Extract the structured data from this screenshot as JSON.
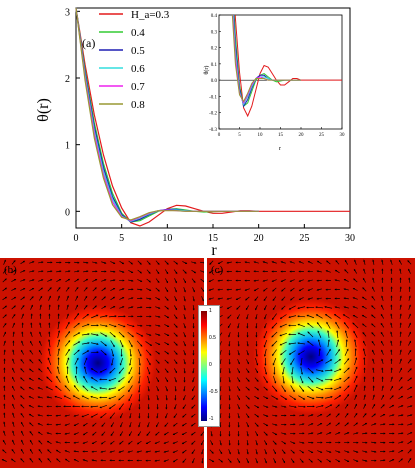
{
  "chart_data": [
    {
      "type": "line",
      "panel_label": "(a)",
      "xlabel": "r",
      "ylabel": "θ(r)",
      "xlim": [
        0,
        30
      ],
      "ylim": [
        -0.25,
        3.05
      ],
      "xticks": [
        "0",
        "5",
        "10",
        "15",
        "20",
        "25",
        "30"
      ],
      "yticks": [
        "0",
        "1",
        "2",
        "3"
      ],
      "legend_position": "top-left",
      "series": [
        {
          "name": "H_a=0.3",
          "color": "#e31a1c",
          "x": [
            0,
            1,
            2,
            3,
            4,
            5,
            6,
            7,
            8,
            9,
            10,
            11,
            12,
            13,
            14,
            15,
            16,
            17,
            18,
            19,
            20,
            22,
            25,
            28,
            30
          ],
          "y": [
            3.05,
            2.2,
            1.45,
            0.85,
            0.38,
            0.05,
            -0.17,
            -0.22,
            -0.16,
            -0.06,
            0.04,
            0.09,
            0.08,
            0.04,
            0.0,
            -0.03,
            -0.03,
            -0.01,
            0.01,
            0.01,
            0.0,
            0.0,
            0.0,
            0.0,
            0.0
          ]
        },
        {
          "name": "0.4",
          "color": "#33cc33",
          "x": [
            0,
            1,
            2,
            3,
            4,
            5,
            6,
            7,
            8,
            9,
            10,
            11,
            12,
            13,
            14,
            16,
            18,
            20
          ],
          "y": [
            3.05,
            2.12,
            1.33,
            0.72,
            0.27,
            -0.03,
            -0.16,
            -0.14,
            -0.07,
            0.0,
            0.03,
            0.04,
            0.02,
            0.0,
            -0.01,
            0.0,
            0.0,
            0.0
          ]
        },
        {
          "name": "0.5",
          "color": "#1f1fb4",
          "x": [
            0,
            1,
            2,
            3,
            4,
            5,
            6,
            7,
            8,
            9,
            10,
            11,
            12,
            13,
            14,
            16,
            18,
            20
          ],
          "y": [
            3.05,
            2.08,
            1.27,
            0.66,
            0.22,
            -0.05,
            -0.16,
            -0.12,
            -0.05,
            0.01,
            0.03,
            0.03,
            0.01,
            0.0,
            0.0,
            0.0,
            0.0,
            0.0
          ]
        },
        {
          "name": "0.6",
          "color": "#33dddd",
          "x": [
            0,
            1,
            2,
            3,
            4,
            5,
            6,
            7,
            8,
            9,
            10,
            11,
            12,
            13,
            14,
            16,
            18,
            20
          ],
          "y": [
            3.05,
            2.04,
            1.21,
            0.6,
            0.18,
            -0.07,
            -0.15,
            -0.1,
            -0.04,
            0.01,
            0.02,
            0.02,
            0.01,
            0.0,
            0.0,
            0.0,
            0.0,
            0.0
          ]
        },
        {
          "name": "0.7",
          "color": "#ee22ee",
          "x": [
            0,
            1,
            2,
            3,
            4,
            5,
            6,
            7,
            8,
            9,
            10,
            11,
            12,
            13,
            14,
            16,
            18,
            20
          ],
          "y": [
            3.05,
            2.0,
            1.16,
            0.55,
            0.14,
            -0.08,
            -0.14,
            -0.09,
            -0.03,
            0.01,
            0.02,
            0.01,
            0.0,
            0.0,
            0.0,
            0.0,
            0.0,
            0.0
          ]
        },
        {
          "name": "0.8",
          "color": "#999933",
          "x": [
            0,
            1,
            2,
            3,
            4,
            5,
            6,
            7,
            8,
            9,
            10,
            11,
            12,
            13,
            14,
            16,
            18,
            20
          ],
          "y": [
            3.05,
            1.96,
            1.1,
            0.5,
            0.1,
            -0.09,
            -0.13,
            -0.08,
            -0.02,
            0.01,
            0.01,
            0.01,
            0.0,
            0.0,
            0.0,
            0.0,
            0.0,
            0.0
          ]
        }
      ]
    },
    {
      "type": "line",
      "panel_label": "inset",
      "xlabel": "r",
      "ylabel": "θ(r)",
      "xlim": [
        0,
        30
      ],
      "ylim": [
        -0.3,
        0.4
      ],
      "xticks": [
        "0",
        "5",
        "10",
        "15",
        "20",
        "25",
        "30"
      ],
      "yticks": [
        "-0.3",
        "-0.2",
        "-0.1",
        "0.0",
        "0.1",
        "0.2",
        "0.3",
        "0.4"
      ],
      "zero_line": true
    },
    {
      "type": "heatmap",
      "panel_label": "(b)",
      "center": [
        0.48,
        0.5
      ],
      "colorbar_ticks": [
        "1",
        "0.5",
        "0",
        "-0.5",
        "-1"
      ]
    },
    {
      "type": "heatmap",
      "panel_label": "(c)",
      "center": [
        0.5,
        0.47
      ]
    }
  ]
}
